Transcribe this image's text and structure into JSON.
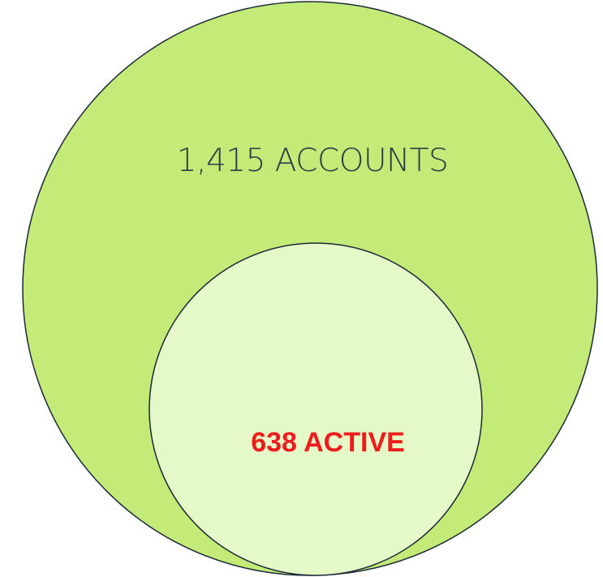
{
  "nodes": [
    {
      "label": "1,415 ACCOUNTS"
    },
    {
      "label": "638 ACTIVE"
    }
  ]
}
